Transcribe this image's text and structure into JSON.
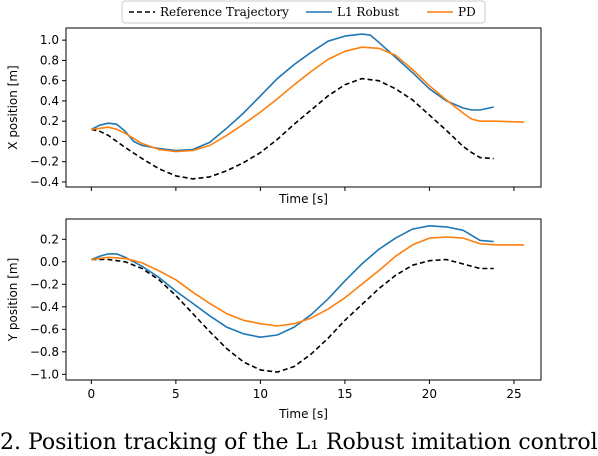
{
  "caption": "2. Position tracking of the L₁ Robust imitation control",
  "chart_data": [
    {
      "type": "line",
      "xlabel": "Time [s]",
      "ylabel": "X position [m]",
      "xlim": [
        -1.5,
        26.6
      ],
      "ylim": [
        -0.45,
        1.12
      ],
      "xticks": [
        0,
        5,
        10,
        15,
        20,
        25
      ],
      "show_xtick_labels": false,
      "yticks": [
        -0.4,
        -0.2,
        0.0,
        0.2,
        0.4,
        0.6,
        0.8,
        1.0
      ],
      "ytick_labels": [
        "−0.4",
        "−0.2",
        "0.0",
        "0.2",
        "0.4",
        "0.6",
        "0.8",
        "1.0"
      ],
      "grid": false,
      "legend": {
        "location": "above",
        "entries": [
          {
            "label": "Reference Trajectory",
            "color": "#000000",
            "dash": "5,3"
          },
          {
            "label": "L1 Robust",
            "color": "#1f77b4",
            "dash": ""
          },
          {
            "label": "PD",
            "color": "#ff7f0e",
            "dash": ""
          }
        ]
      },
      "series": [
        {
          "name": "Reference Trajectory",
          "color": "#000000",
          "dash": "5,3",
          "x": [
            0,
            0.5,
            1,
            1.5,
            2,
            3,
            4,
            5,
            6,
            7,
            8,
            9,
            10,
            11,
            12,
            13,
            14,
            15,
            16,
            17,
            18,
            19,
            20,
            21,
            22,
            22.5,
            23,
            23.8
          ],
          "y": [
            0.12,
            0.1,
            0.06,
            0.0,
            -0.06,
            -0.17,
            -0.27,
            -0.34,
            -0.37,
            -0.35,
            -0.29,
            -0.21,
            -0.11,
            0.02,
            0.17,
            0.31,
            0.45,
            0.56,
            0.62,
            0.6,
            0.52,
            0.41,
            0.26,
            0.11,
            -0.05,
            -0.11,
            -0.16,
            -0.17
          ]
        },
        {
          "name": "L1 Robust",
          "color": "#1f77b4",
          "dash": "",
          "x": [
            0,
            0.5,
            1,
            1.5,
            2,
            2.5,
            3,
            4,
            5,
            6,
            7,
            8,
            9,
            10,
            11,
            12,
            13,
            14,
            15,
            16,
            16.5,
            17,
            18,
            19,
            20,
            21,
            22,
            22.5,
            23,
            23.8
          ],
          "y": [
            0.12,
            0.16,
            0.18,
            0.17,
            0.1,
            0.0,
            -0.04,
            -0.07,
            -0.09,
            -0.08,
            -0.01,
            0.13,
            0.28,
            0.45,
            0.62,
            0.76,
            0.88,
            0.99,
            1.04,
            1.06,
            1.05,
            0.98,
            0.83,
            0.68,
            0.52,
            0.4,
            0.33,
            0.31,
            0.31,
            0.34
          ]
        },
        {
          "name": "PD",
          "color": "#ff7f0e",
          "dash": "",
          "x": [
            0,
            0.5,
            1,
            1.5,
            2,
            3,
            4,
            5,
            6,
            7,
            8,
            9,
            10,
            11,
            12,
            13,
            14,
            15,
            16,
            17,
            18,
            19,
            20,
            21,
            22,
            22.5,
            23,
            24,
            25.6
          ],
          "y": [
            0.12,
            0.13,
            0.14,
            0.12,
            0.08,
            -0.02,
            -0.08,
            -0.1,
            -0.09,
            -0.04,
            0.06,
            0.17,
            0.29,
            0.42,
            0.56,
            0.69,
            0.81,
            0.89,
            0.93,
            0.92,
            0.85,
            0.71,
            0.55,
            0.41,
            0.28,
            0.22,
            0.2,
            0.2,
            0.19
          ]
        }
      ]
    },
    {
      "type": "line",
      "xlabel": "Time [s]",
      "ylabel": "Y position [m]",
      "xlim": [
        -1.5,
        26.6
      ],
      "ylim": [
        -1.05,
        0.38
      ],
      "xticks": [
        0,
        5,
        10,
        15,
        20,
        25
      ],
      "xtick_labels": [
        "0",
        "5",
        "10",
        "15",
        "20",
        "25"
      ],
      "show_xtick_labels": true,
      "yticks": [
        -1.0,
        -0.8,
        -0.6,
        -0.4,
        -0.2,
        0.0,
        0.2
      ],
      "ytick_labels": [
        "−1.0",
        "−0.8",
        "−0.6",
        "−0.4",
        "−0.2",
        "0.0",
        "0.2"
      ],
      "grid": false,
      "series": [
        {
          "name": "Reference Trajectory",
          "color": "#000000",
          "dash": "5,3",
          "x": [
            0,
            1,
            2,
            3,
            4,
            5,
            6,
            7,
            8,
            9,
            10,
            11,
            12,
            13,
            14,
            15,
            16,
            17,
            18,
            19,
            20,
            21,
            22,
            23,
            23.8
          ],
          "y": [
            0.02,
            0.02,
            0.0,
            -0.06,
            -0.16,
            -0.3,
            -0.46,
            -0.62,
            -0.77,
            -0.89,
            -0.96,
            -0.98,
            -0.93,
            -0.82,
            -0.68,
            -0.52,
            -0.38,
            -0.24,
            -0.12,
            -0.03,
            0.01,
            0.02,
            -0.02,
            -0.06,
            -0.06
          ]
        },
        {
          "name": "L1 Robust",
          "color": "#1f77b4",
          "dash": "",
          "x": [
            0,
            0.5,
            1,
            1.5,
            2,
            3,
            4,
            5,
            6,
            7,
            8,
            9,
            10,
            11,
            12,
            13,
            14,
            15,
            16,
            17,
            18,
            19,
            20,
            21,
            22,
            23,
            23.8
          ],
          "y": [
            0.02,
            0.05,
            0.07,
            0.07,
            0.04,
            -0.04,
            -0.14,
            -0.26,
            -0.37,
            -0.48,
            -0.58,
            -0.64,
            -0.67,
            -0.65,
            -0.58,
            -0.47,
            -0.33,
            -0.17,
            -0.02,
            0.11,
            0.21,
            0.29,
            0.32,
            0.31,
            0.28,
            0.19,
            0.18
          ]
        },
        {
          "name": "PD",
          "color": "#ff7f0e",
          "dash": "",
          "x": [
            0,
            1,
            2,
            3,
            4,
            5,
            6,
            7,
            8,
            9,
            10,
            11,
            12,
            13,
            14,
            15,
            16,
            17,
            18,
            19,
            20,
            21,
            22,
            23,
            24,
            25.6
          ],
          "y": [
            0.02,
            0.04,
            0.03,
            -0.01,
            -0.08,
            -0.16,
            -0.27,
            -0.37,
            -0.46,
            -0.52,
            -0.55,
            -0.57,
            -0.55,
            -0.5,
            -0.42,
            -0.32,
            -0.2,
            -0.08,
            0.05,
            0.15,
            0.21,
            0.22,
            0.21,
            0.16,
            0.15,
            0.15
          ]
        }
      ]
    }
  ]
}
